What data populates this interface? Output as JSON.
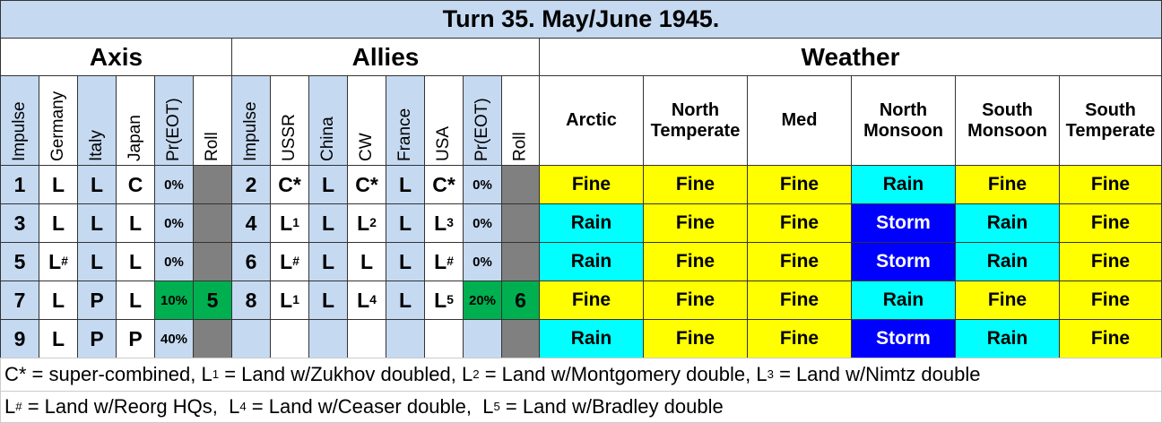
{
  "header": {
    "title": "Turn 35.  May/June 1945."
  },
  "axis": {
    "title": "Axis",
    "columns": [
      "Impulse",
      "Germany",
      "Italy",
      "Japan",
      "Pr(EOT)",
      "Roll"
    ],
    "rows": [
      [
        "1",
        "L",
        "L",
        "C",
        "0%",
        null
      ],
      [
        "3",
        "L",
        "L",
        "L",
        "0%",
        null
      ],
      [
        "5",
        {
          "text": "L",
          "sup": "#"
        },
        "L",
        "L",
        "0%",
        null
      ],
      [
        "7",
        "L",
        "P",
        "L",
        "10%",
        "5"
      ],
      [
        "9",
        "L",
        "P",
        "P",
        "40%",
        null
      ]
    ]
  },
  "allies": {
    "title": "Allies",
    "columns": [
      "Impulse",
      "USSR",
      "China",
      "CW",
      "France",
      "USA",
      "Pr(EOT)",
      "Roll"
    ],
    "rows": [
      [
        "2",
        "C*",
        "L",
        "C*",
        "L",
        "C*",
        "0%",
        null
      ],
      [
        "4",
        {
          "text": "L",
          "sup": "1"
        },
        "L",
        {
          "text": "L",
          "sup": "2"
        },
        "L",
        {
          "text": "L",
          "sup": "3"
        },
        "0%",
        null
      ],
      [
        "6",
        {
          "text": "L",
          "sup": "#"
        },
        "L",
        "L",
        "L",
        {
          "text": "L",
          "sup": "#"
        },
        "0%",
        null
      ],
      [
        "8",
        {
          "text": "L",
          "sup": "1"
        },
        "L",
        {
          "text": "L",
          "sup": "4"
        },
        "L",
        {
          "text": "L",
          "sup": "5"
        },
        "20%",
        "6"
      ],
      [
        null,
        null,
        null,
        null,
        null,
        null,
        null,
        null
      ]
    ]
  },
  "weather": {
    "title": "Weather",
    "columns": [
      "Arctic",
      "North Temperate",
      "Med",
      "North Monsoon",
      "South Monsoon",
      "South Temperate"
    ],
    "colors": {
      "Fine": "#ffff00",
      "Rain": "#00ffff",
      "Storm": "#0000ff"
    },
    "rows": [
      [
        "Fine",
        "Fine",
        "Fine",
        "Rain",
        "Fine",
        "Fine"
      ],
      [
        "Rain",
        "Fine",
        "Fine",
        "Storm",
        "Rain",
        "Fine"
      ],
      [
        "Rain",
        "Fine",
        "Fine",
        "Storm",
        "Rain",
        "Fine"
      ],
      [
        "Fine",
        "Fine",
        "Fine",
        "Rain",
        "Fine",
        "Fine"
      ],
      [
        "Rain",
        "Fine",
        "Fine",
        "Storm",
        "Rain",
        "Fine"
      ]
    ]
  },
  "footer": [
    [
      {
        "t": "C* = super-combined, L"
      },
      {
        "sup": "1"
      },
      {
        "t": " = Land w/Zukhov doubled, L"
      },
      {
        "sup": "2"
      },
      {
        "t": " = Land w/Montgomery double, L"
      },
      {
        "sup": "3"
      },
      {
        "t": " = Land w/Nimtz double"
      }
    ],
    [
      {
        "t": "L"
      },
      {
        "sup": "#"
      },
      {
        "t": " = Land w/Reorg HQs,  L"
      },
      {
        "sup": "4"
      },
      {
        "t": " = Land w/Ceaser double,  L"
      },
      {
        "sup": "5"
      },
      {
        "t": " = Land w/Bradley double"
      }
    ]
  ]
}
